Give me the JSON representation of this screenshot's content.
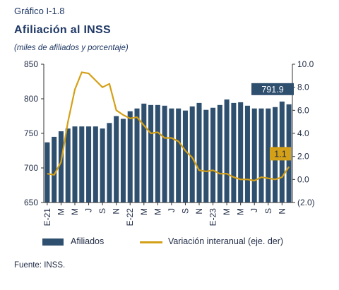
{
  "header": {
    "figure_label": "Gráfico I-1.8",
    "title": "Afiliación al INSS",
    "subtitle": "(miles de afiliados y porcentaje)"
  },
  "legend": {
    "bars_label": "Afiliados",
    "line_label": "Variación interanual (eje. der)"
  },
  "footer": {
    "source": "Fuente: INSS."
  },
  "colors": {
    "bar": "#2f4f6f",
    "line": "#d4a017",
    "axis": "#333333"
  },
  "chart_data": {
    "type": "bar+line",
    "x_tick_labels": [
      "E-21",
      "M",
      "M",
      "J",
      "S",
      "N",
      "E-22",
      "M",
      "M",
      "J",
      "S",
      "N",
      "E-23",
      "M",
      "M",
      "J",
      "S",
      "N"
    ],
    "x": [
      "E-21",
      "F-21",
      "M-21",
      "A-21",
      "M-21",
      "J-21",
      "J-21",
      "A-21",
      "S-21",
      "O-21",
      "N-21",
      "D-21",
      "E-22",
      "F-22",
      "M-22",
      "A-22",
      "M-22",
      "J-22",
      "J-22",
      "A-22",
      "S-22",
      "O-22",
      "N-22",
      "D-22",
      "E-23",
      "F-23",
      "M-23",
      "A-23",
      "M-23",
      "J-23",
      "J-23",
      "A-23",
      "S-23",
      "O-23",
      "N-23",
      "D-23"
    ],
    "series": [
      {
        "name": "Afiliados",
        "axis": "left",
        "values": [
          737,
          745,
          753,
          757,
          760,
          760,
          760,
          760,
          757,
          765,
          775,
          771,
          782,
          786,
          793,
          791,
          791,
          790,
          786,
          786,
          783,
          789,
          794,
          784,
          787,
          791,
          799,
          794,
          795,
          790,
          786,
          786,
          786,
          788,
          796,
          792
        ]
      },
      {
        "name": "Variación interanual (eje. der)",
        "axis": "right",
        "values": [
          0.5,
          0.4,
          1.5,
          5.0,
          7.8,
          9.3,
          9.2,
          8.6,
          8.0,
          8.3,
          6.0,
          5.6,
          5.3,
          5.4,
          4.7,
          4.0,
          4.1,
          3.6,
          3.6,
          3.3,
          2.5,
          1.9,
          0.8,
          0.7,
          0.8,
          0.5,
          0.5,
          0.2,
          0.0,
          0.0,
          -0.1,
          0.2,
          0.1,
          0.0,
          0.2,
          1.1
        ]
      }
    ],
    "y_left": {
      "ticks": [
        "850",
        "800",
        "750",
        "700",
        "650"
      ],
      "lim": [
        650,
        850
      ]
    },
    "y_right": {
      "ticks": [
        "10.0",
        "8.0",
        "6.0",
        "4.0",
        "2.0",
        "0.0",
        "(2.0)"
      ],
      "lim": [
        -2,
        10
      ]
    },
    "annotations": [
      {
        "text": "791.9",
        "series": "Afiliados"
      },
      {
        "text": "1.1",
        "series": "Variación interanual (eje. der)"
      }
    ]
  }
}
